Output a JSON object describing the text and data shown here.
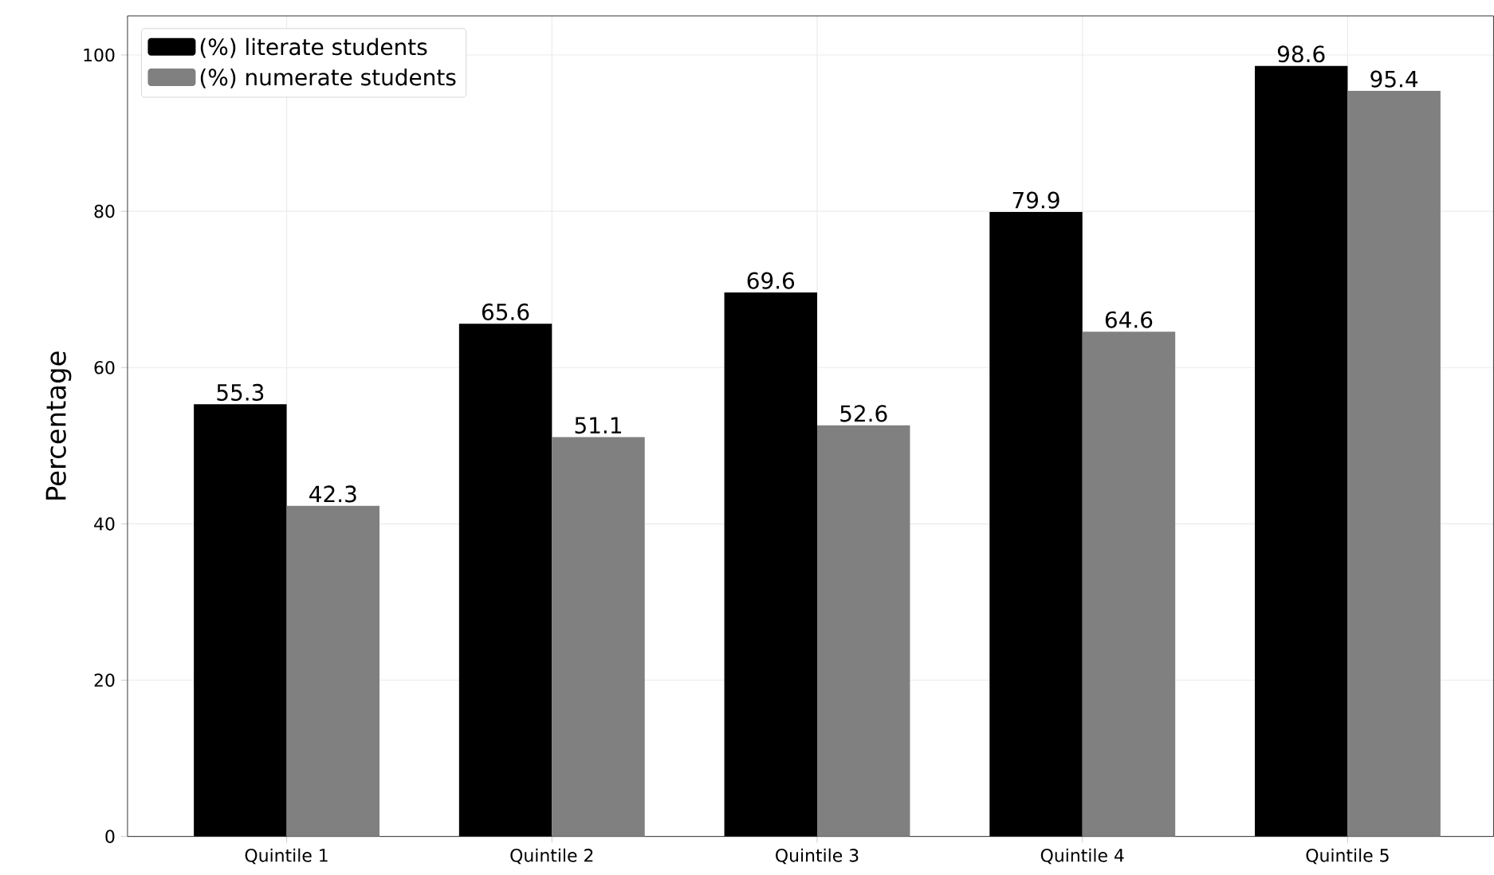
{
  "chart_data": {
    "type": "bar",
    "ylabel": "Percentage",
    "categories": [
      "Quintile 1",
      "Quintile 2",
      "Quintile 3",
      "Quintile 4",
      "Quintile 5"
    ],
    "series": [
      {
        "name": "(%) literate students",
        "color": "#000000",
        "values": [
          55.3,
          65.6,
          69.6,
          79.9,
          98.6
        ]
      },
      {
        "name": "(%) numerate students",
        "color": "#808080",
        "values": [
          42.3,
          51.1,
          52.6,
          64.6,
          95.4
        ]
      }
    ],
    "ylim": [
      0,
      105
    ],
    "yticks": [
      0,
      20,
      40,
      60,
      80,
      100
    ],
    "grid": true,
    "legend": "top left",
    "data_labels": true
  }
}
